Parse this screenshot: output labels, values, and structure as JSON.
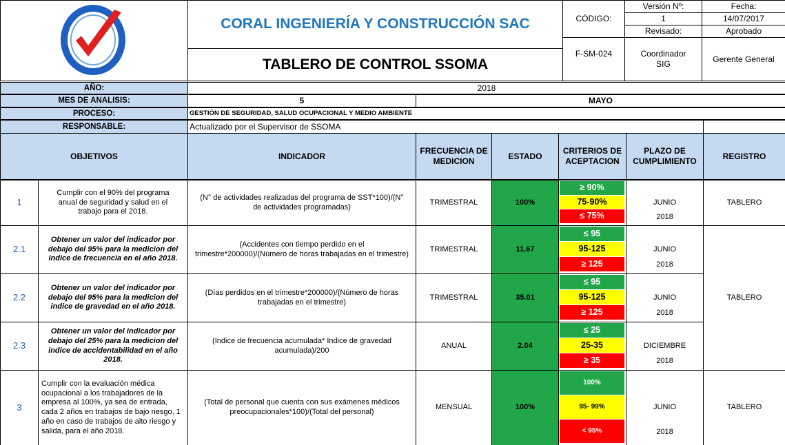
{
  "header": {
    "company": "CORAL INGENIERÍA Y CONSTRUCCIÓN SAC",
    "title": "TABLERO DE CONTROL SSOMA",
    "code_label": "CÓDIGO:",
    "code": "F-SM-024",
    "version_label": "Versión Nº:",
    "version": "1",
    "date_label": "Fecha:",
    "date": "14/07/2017",
    "reviewed_label": "Revisado:",
    "approved_label": "Aprobado",
    "reviewer": "Coordinador SIG",
    "approver": "Gerente General"
  },
  "info": {
    "year_label": "AÑO:",
    "year": "2018",
    "month_label": "MES DE ANALISIS:",
    "month_number": "5",
    "month_name": "MAYO",
    "process_label": "PROCESO:",
    "process": "GESTIÓN DE SEGURIDAD, SALUD OCUPACIONAL Y MEDIO AMBIENTE",
    "responsible_label": "RESPONSABLE:",
    "responsible": "Actualizado por el Supervisor de SSOMA"
  },
  "table": {
    "columns": [
      "OBJETIVOS",
      "INDICADOR",
      "FRECUENCIA DE MEDICION",
      "ESTADO",
      "CRITERIOS DE ACEPTACION",
      "PLAZO DE CUMPLIMIENTO",
      "REGISTRO"
    ],
    "rows": [
      {
        "number": "1",
        "objective": "Cumplir con el 90% del programa anual de seguridad y salud en el trabajo para el 2018.",
        "indicator": "(N° de actividades realizadas del programa de SST*100)/(N° de actividades programadas)",
        "frequency": "TRIMESTRAL",
        "status": "100%",
        "criteria": [
          "≥ 90%",
          "75-90%",
          "≤ 75%"
        ],
        "deadline_month": "JUNIO",
        "deadline_year": "2018",
        "record": "TABLERO"
      },
      {
        "number": "2.1",
        "objective": "Obtener un valor del indicador por debajo del 95% para la medicion del indice de frecuencia en el año 2018.",
        "indicator": "(Accidentes con tiempo perdido en el trimestre*200000)/(Número de horas trabajadas en el trimestre)",
        "frequency": "TRIMESTRAL",
        "status": "11.67",
        "criteria": [
          "≤ 95",
          "95-125",
          "≥ 125"
        ],
        "deadline_month": "JUNIO",
        "deadline_year": "2018"
      },
      {
        "number": "2.2",
        "objective": "Obtener un valor del indicador por debajo del 95% para la medicion del indice de gravedad en el año 2018.",
        "indicator": "(Días perdidos en el trimestre*200000)/(Número de horas trabajadas en el trimestre)",
        "frequency": "TRIMESTRAL",
        "status": "35.01",
        "criteria": [
          "≤ 95",
          "95-125",
          "≥ 125"
        ],
        "deadline_month": "JUNIO",
        "deadline_year": "2018",
        "record": "TABLERO"
      },
      {
        "number": "2.3",
        "objective": "Obtener un valor del indicador por debajo del 25% para la medicion del indice de accidentabilidad en el año 2018.",
        "indicator": "(Indice de frecuencia acumulada* Indice de gravedad acumulada)/200",
        "frequency": "ANUAL",
        "status": "2.04",
        "criteria": [
          "≤ 25",
          "25-35",
          "≥ 35"
        ],
        "deadline_month": "DICIEMBRE",
        "deadline_year": "2018"
      },
      {
        "number": "3",
        "objective": "Cumplir con la evaluación médica ocupacional a los trabajadores de la empresa al 100%, ya sea de entrada, cada 2 años en trabajos de bajo riesgo, 1 año en caso de trabajos de alto riesgo y salida, para el año 2018.",
        "indicator": "(Total de personal que cuenta con sus exámenes médicos preocupacionales*100)/(Total del personal)",
        "frequency": "MENSUAL",
        "status": "100%",
        "criteria": [
          "100%",
          "95- 99%",
          "< 95%"
        ],
        "deadline_month": "JUNIO",
        "deadline_year": "2018",
        "record": "TABLERO"
      }
    ]
  }
}
